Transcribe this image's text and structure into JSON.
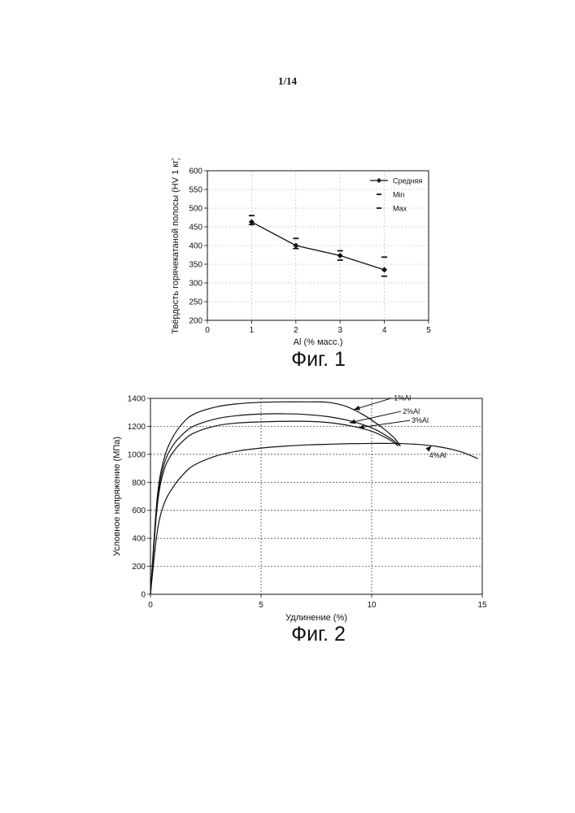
{
  "page": {
    "number": "1/14"
  },
  "figures": [
    {
      "caption": "Фиг. 1"
    },
    {
      "caption": "Фиг. 2"
    }
  ],
  "chart_data": [
    {
      "type": "scatter",
      "title": "",
      "xlabel": "Al (% масс.)",
      "ylabel": "Твёрдость горячекатаной полосы (HV 1 кг)",
      "xlim": [
        0,
        5
      ],
      "ylim": [
        200,
        600
      ],
      "xticks": [
        "0",
        "1",
        "2",
        "3",
        "4",
        "5"
      ],
      "yticks": [
        "200",
        "250",
        "300",
        "350",
        "400",
        "450",
        "500",
        "550",
        "600"
      ],
      "grid": true,
      "legend_position": "top-right",
      "series": [
        {
          "name": "Средняя",
          "style": "line-diamond",
          "x": [
            1,
            2,
            3,
            4
          ],
          "y": [
            463,
            400,
            373,
            335
          ]
        },
        {
          "name": "Min",
          "style": "dash",
          "x": [
            1,
            2,
            3,
            4
          ],
          "y": [
            456,
            392,
            361,
            318
          ]
        },
        {
          "name": "Max",
          "style": "dash",
          "x": [
            1,
            2,
            3,
            4
          ],
          "y": [
            480,
            419,
            386,
            369
          ]
        }
      ]
    },
    {
      "type": "line",
      "title": "",
      "xlabel": "Удлинение (%)",
      "ylabel": "Условное напряжение (МПа)",
      "xlim": [
        0,
        15
      ],
      "ylim": [
        0,
        1400
      ],
      "xticks": [
        "0",
        "5",
        "10",
        "15"
      ],
      "yticks": [
        "0",
        "200",
        "400",
        "600",
        "800",
        "1000",
        "1200",
        "1400"
      ],
      "grid": true,
      "series": [
        {
          "name": "1%Al",
          "x": [
            0,
            0.3,
            0.6,
            1.0,
            1.5,
            2.0,
            3.0,
            4.0,
            5.0,
            6.0,
            7.0,
            8.0,
            8.8,
            9.6,
            10.4,
            11.0,
            11.3
          ],
          "y": [
            0,
            680,
            960,
            1120,
            1230,
            1290,
            1340,
            1362,
            1372,
            1375,
            1375,
            1372,
            1345,
            1285,
            1200,
            1120,
            1060
          ]
        },
        {
          "name": "2%Al",
          "x": [
            0,
            0.3,
            0.6,
            1.0,
            1.5,
            2.0,
            3.0,
            4.0,
            5.0,
            6.0,
            7.0,
            8.0,
            9.0,
            10.0,
            10.8,
            11.3
          ],
          "y": [
            0,
            650,
            920,
            1060,
            1150,
            1205,
            1255,
            1278,
            1288,
            1290,
            1285,
            1270,
            1240,
            1190,
            1120,
            1060
          ]
        },
        {
          "name": "3%Al",
          "x": [
            0,
            0.3,
            0.6,
            1.0,
            1.5,
            2.0,
            3.0,
            4.0,
            5.0,
            6.0,
            7.0,
            8.0,
            9.0,
            10.0,
            10.8,
            11.2
          ],
          "y": [
            0,
            620,
            880,
            1010,
            1100,
            1155,
            1205,
            1225,
            1232,
            1236,
            1236,
            1228,
            1205,
            1165,
            1105,
            1060
          ]
        },
        {
          "name": "4%Al",
          "x": [
            0,
            0.3,
            0.6,
            1.0,
            1.5,
            2.0,
            3.0,
            4.0,
            5.0,
            6.0,
            7.0,
            8.0,
            9.0,
            10.0,
            11.0,
            12.0,
            13.0,
            14.0,
            14.8
          ],
          "y": [
            0,
            440,
            640,
            760,
            860,
            925,
            990,
            1025,
            1045,
            1058,
            1067,
            1072,
            1076,
            1078,
            1078,
            1072,
            1055,
            1020,
            970
          ]
        }
      ],
      "annotations": [
        {
          "text": "1%Al",
          "x": 9.2,
          "y": 1320
        },
        {
          "text": "2%Al",
          "x": 9.0,
          "y": 1225
        },
        {
          "text": "3%Al",
          "x": 9.4,
          "y": 1190
        },
        {
          "text": "4%Al",
          "x": 12.7,
          "y": 1060
        }
      ]
    }
  ]
}
